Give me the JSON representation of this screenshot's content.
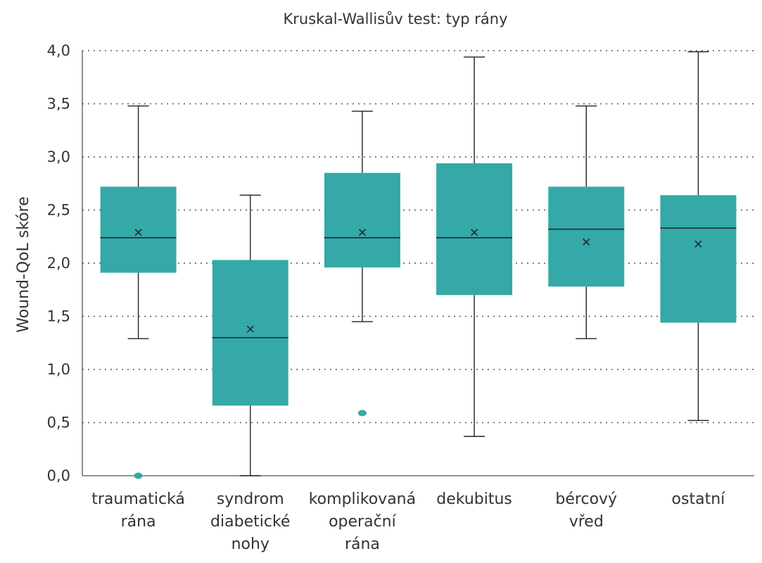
{
  "chart_data": {
    "type": "boxplot",
    "title": "Kruskal-Wallisův test: typ rány",
    "xlabel": "",
    "ylabel": "Wound-QoL skóre",
    "ylim": [
      0,
      4
    ],
    "y_ticks": [
      "0,0",
      "0,5",
      "1,0",
      "1,5",
      "2,0",
      "2,5",
      "3,0",
      "3,5",
      "4,0"
    ],
    "grid": "horizontal dotted",
    "categories": [
      [
        "traumatická",
        "rána"
      ],
      [
        "syndrom",
        "diabetické",
        "nohy"
      ],
      [
        "komplikovaná",
        "operační",
        "rána"
      ],
      [
        "dekubitus"
      ],
      [
        "bércový",
        "vřed"
      ],
      [
        "ostatní"
      ]
    ],
    "boxes": [
      {
        "whisker_low": 1.29,
        "q1": 1.91,
        "median": 2.24,
        "q3": 2.72,
        "whisker_high": 3.48,
        "mean": 2.29,
        "outliers": [
          0.0
        ]
      },
      {
        "whisker_low": 0.0,
        "q1": 0.66,
        "median": 1.3,
        "q3": 2.03,
        "whisker_high": 2.64,
        "mean": 1.38,
        "outliers": []
      },
      {
        "whisker_low": 1.45,
        "q1": 1.96,
        "median": 2.24,
        "q3": 2.85,
        "whisker_high": 3.43,
        "mean": 2.29,
        "outliers": [
          0.59
        ]
      },
      {
        "whisker_low": 0.37,
        "q1": 1.7,
        "median": 2.24,
        "q3": 2.94,
        "whisker_high": 3.94,
        "mean": 2.29,
        "outliers": []
      },
      {
        "whisker_low": 1.29,
        "q1": 1.78,
        "median": 2.32,
        "q3": 2.72,
        "whisker_high": 3.48,
        "mean": 2.2,
        "outliers": []
      },
      {
        "whisker_low": 0.52,
        "q1": 1.44,
        "median": 2.33,
        "q3": 2.64,
        "whisker_high": 3.99,
        "mean": 2.18,
        "outliers": []
      }
    ],
    "colors": {
      "box": "#35a8a8",
      "line": "#222222",
      "grid": "#555555",
      "axis": "#555555"
    }
  }
}
